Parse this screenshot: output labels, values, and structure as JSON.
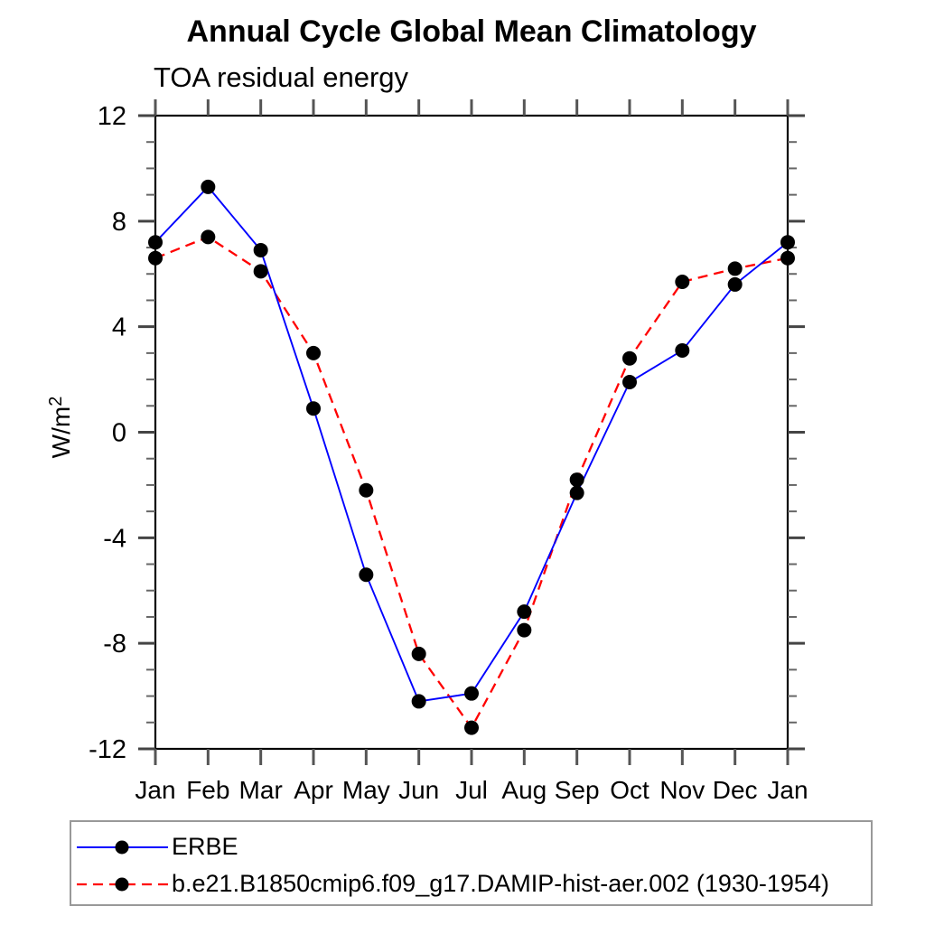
{
  "title": "Annual Cycle Global Mean Climatology",
  "subtitle": "TOA residual energy",
  "ylabel_main": "W/m",
  "ylabel_sup": "2",
  "chart_data": {
    "type": "line",
    "title": "Annual Cycle Global Mean Climatology",
    "subtitle": "TOA residual energy",
    "ylabel": "W/m²",
    "xlabel": "",
    "categories": [
      "Jan",
      "Feb",
      "Mar",
      "Apr",
      "May",
      "Jun",
      "Jul",
      "Aug",
      "Sep",
      "Oct",
      "Nov",
      "Dec",
      "Jan"
    ],
    "series": [
      {
        "name": "ERBE",
        "color": "#0000ff",
        "line_style": "solid",
        "marker": "filled-circle",
        "marker_color": "#000000",
        "values": [
          7.2,
          9.3,
          6.9,
          0.9,
          -5.4,
          -10.2,
          -9.9,
          -6.8,
          -2.3,
          1.9,
          3.1,
          5.6,
          7.2
        ]
      },
      {
        "name": "b.e21.B1850cmip6.f09_g17.DAMIP-hist-aer.002 (1930-1954)",
        "color": "#ff0000",
        "line_style": "dashed",
        "marker": "filled-circle",
        "marker_color": "#000000",
        "values": [
          6.6,
          7.4,
          6.1,
          3.0,
          -2.2,
          -8.4,
          -11.2,
          -7.5,
          -1.8,
          2.8,
          5.7,
          6.2,
          6.6
        ]
      }
    ],
    "ylim": [
      -12,
      12
    ],
    "ytick_major": [
      -12,
      -8,
      -4,
      0,
      4,
      8,
      12
    ],
    "ytick_labels": [
      "-12",
      "-8",
      "-4",
      "0",
      "4",
      "8",
      "12"
    ],
    "ytick_minor_step": 1,
    "grid": false,
    "legend_position": "bottom-left-box"
  }
}
